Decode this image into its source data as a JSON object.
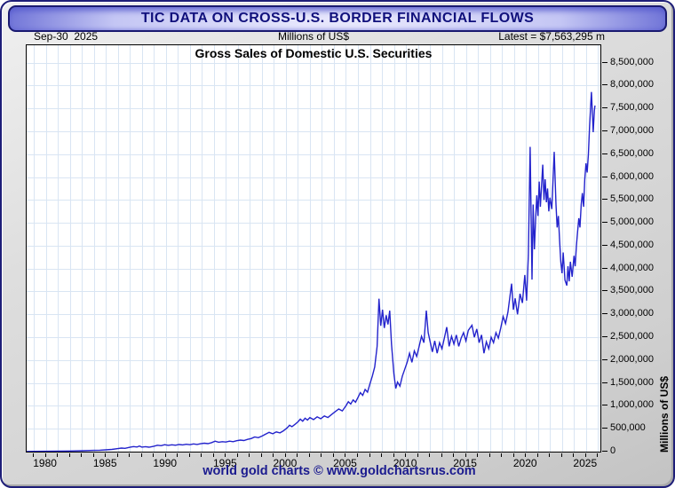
{
  "window": {
    "title": "TIC DATA ON CROSS-U.S. BORDER FINANCIAL FLOWS"
  },
  "header": {
    "date": "Sep-30  2025",
    "units": "Millions of US$",
    "latest": "Latest = $7,563,295 m"
  },
  "footer": {
    "credit": "world gold charts © www.goldchartsrus.com"
  },
  "colors": {
    "line": "#2323cc",
    "grid": "#d9e5f3",
    "plot_bg": "#ffffff",
    "frame": "#000000",
    "window_border": "#1e1e78",
    "titlebar_text": "#10107c",
    "footer_text": "#1b1b8f"
  },
  "chart_data": {
    "type": "line",
    "title": "Gross Sales of Domestic U.S. Securities",
    "xlabel": "",
    "ylabel": "Millions of US$",
    "xlim": [
      1978.4,
      2026.2
    ],
    "ylim": [
      0,
      8880000
    ],
    "ytick_interval": 500000,
    "ytick_max": 8500000,
    "xticks_labeled": [
      1980,
      1985,
      1990,
      1995,
      2000,
      2005,
      2010,
      2015,
      2020,
      2025
    ],
    "grid": true,
    "legend_position": "none",
    "latest_date": "Sep-30 2025",
    "latest_value": 7563295,
    "series": [
      {
        "name": "Gross Sales of Domestic U.S. Securities",
        "points": [
          [
            1978.4,
            3000
          ],
          [
            1979,
            5000
          ],
          [
            1980,
            8000
          ],
          [
            1981,
            11000
          ],
          [
            1982,
            14000
          ],
          [
            1983,
            20000
          ],
          [
            1984,
            27000
          ],
          [
            1984.5,
            31000
          ],
          [
            1985,
            38000
          ],
          [
            1985.5,
            48000
          ],
          [
            1986,
            65000
          ],
          [
            1986.3,
            78000
          ],
          [
            1986.6,
            72000
          ],
          [
            1987,
            95000
          ],
          [
            1987.3,
            110000
          ],
          [
            1987.6,
            100000
          ],
          [
            1987.8,
            122000
          ],
          [
            1988,
            98000
          ],
          [
            1988.3,
            108000
          ],
          [
            1988.6,
            96000
          ],
          [
            1989,
            118000
          ],
          [
            1989.3,
            140000
          ],
          [
            1989.6,
            130000
          ],
          [
            1989.9,
            152000
          ],
          [
            1990.2,
            138000
          ],
          [
            1990.5,
            150000
          ],
          [
            1990.8,
            140000
          ],
          [
            1991.1,
            155000
          ],
          [
            1991.4,
            147000
          ],
          [
            1991.7,
            160000
          ],
          [
            1992,
            152000
          ],
          [
            1992.3,
            168000
          ],
          [
            1992.6,
            158000
          ],
          [
            1992.9,
            172000
          ],
          [
            1993.2,
            185000
          ],
          [
            1993.5,
            175000
          ],
          [
            1993.8,
            195000
          ],
          [
            1994.1,
            228000
          ],
          [
            1994.4,
            205000
          ],
          [
            1994.7,
            218000
          ],
          [
            1995,
            210000
          ],
          [
            1995.3,
            228000
          ],
          [
            1995.6,
            218000
          ],
          [
            1995.9,
            238000
          ],
          [
            1996.2,
            252000
          ],
          [
            1996.5,
            242000
          ],
          [
            1996.8,
            268000
          ],
          [
            1997.1,
            285000
          ],
          [
            1997.4,
            320000
          ],
          [
            1997.7,
            305000
          ],
          [
            1998,
            340000
          ],
          [
            1998.3,
            380000
          ],
          [
            1998.6,
            420000
          ],
          [
            1998.9,
            390000
          ],
          [
            1999.2,
            430000
          ],
          [
            1999.5,
            410000
          ],
          [
            1999.8,
            455000
          ],
          [
            2000.1,
            520000
          ],
          [
            2000.3,
            575000
          ],
          [
            2000.5,
            545000
          ],
          [
            2000.8,
            605000
          ],
          [
            2001,
            650000
          ],
          [
            2001.2,
            710000
          ],
          [
            2001.4,
            665000
          ],
          [
            2001.6,
            730000
          ],
          [
            2001.8,
            690000
          ],
          [
            2002,
            745000
          ],
          [
            2002.3,
            700000
          ],
          [
            2002.6,
            760000
          ],
          [
            2002.9,
            720000
          ],
          [
            2003.2,
            780000
          ],
          [
            2003.5,
            745000
          ],
          [
            2003.8,
            810000
          ],
          [
            2004.1,
            870000
          ],
          [
            2004.4,
            930000
          ],
          [
            2004.7,
            890000
          ],
          [
            2005,
            1000000
          ],
          [
            2005.2,
            1090000
          ],
          [
            2005.4,
            1040000
          ],
          [
            2005.6,
            1130000
          ],
          [
            2005.8,
            1080000
          ],
          [
            2006,
            1180000
          ],
          [
            2006.2,
            1290000
          ],
          [
            2006.4,
            1230000
          ],
          [
            2006.6,
            1360000
          ],
          [
            2006.8,
            1300000
          ],
          [
            2007,
            1480000
          ],
          [
            2007.2,
            1650000
          ],
          [
            2007.4,
            1850000
          ],
          [
            2007.6,
            2300000
          ],
          [
            2007.75,
            3340000
          ],
          [
            2007.9,
            2750000
          ],
          [
            2008.05,
            3100000
          ],
          [
            2008.2,
            2700000
          ],
          [
            2008.35,
            2980000
          ],
          [
            2008.5,
            2780000
          ],
          [
            2008.65,
            3080000
          ],
          [
            2008.8,
            2350000
          ],
          [
            2009,
            1700000
          ],
          [
            2009.15,
            1380000
          ],
          [
            2009.3,
            1520000
          ],
          [
            2009.5,
            1430000
          ],
          [
            2009.7,
            1650000
          ],
          [
            2009.9,
            1800000
          ],
          [
            2010.1,
            1950000
          ],
          [
            2010.3,
            2150000
          ],
          [
            2010.5,
            1950000
          ],
          [
            2010.7,
            2200000
          ],
          [
            2010.9,
            2080000
          ],
          [
            2011.1,
            2300000
          ],
          [
            2011.3,
            2520000
          ],
          [
            2011.5,
            2380000
          ],
          [
            2011.7,
            3080000
          ],
          [
            2011.85,
            2600000
          ],
          [
            2012,
            2420000
          ],
          [
            2012.2,
            2180000
          ],
          [
            2012.4,
            2420000
          ],
          [
            2012.6,
            2150000
          ],
          [
            2012.8,
            2380000
          ],
          [
            2013,
            2250000
          ],
          [
            2013.2,
            2480000
          ],
          [
            2013.4,
            2720000
          ],
          [
            2013.6,
            2300000
          ],
          [
            2013.8,
            2520000
          ],
          [
            2014,
            2350000
          ],
          [
            2014.2,
            2550000
          ],
          [
            2014.4,
            2300000
          ],
          [
            2014.6,
            2480000
          ],
          [
            2014.8,
            2600000
          ],
          [
            2015,
            2420000
          ],
          [
            2015.2,
            2650000
          ],
          [
            2015.5,
            2760000
          ],
          [
            2015.7,
            2500000
          ],
          [
            2015.9,
            2680000
          ],
          [
            2016.1,
            2380000
          ],
          [
            2016.3,
            2550000
          ],
          [
            2016.5,
            2150000
          ],
          [
            2016.7,
            2400000
          ],
          [
            2016.9,
            2250000
          ],
          [
            2017.1,
            2500000
          ],
          [
            2017.3,
            2380000
          ],
          [
            2017.5,
            2600000
          ],
          [
            2017.7,
            2480000
          ],
          [
            2017.9,
            2700000
          ],
          [
            2018.1,
            2950000
          ],
          [
            2018.3,
            2800000
          ],
          [
            2018.5,
            3050000
          ],
          [
            2018.8,
            3670000
          ],
          [
            2018.95,
            3100000
          ],
          [
            2019.1,
            3350000
          ],
          [
            2019.3,
            3000000
          ],
          [
            2019.5,
            3450000
          ],
          [
            2019.7,
            3250000
          ],
          [
            2019.9,
            3860000
          ],
          [
            2020.05,
            3300000
          ],
          [
            2020.2,
            4300000
          ],
          [
            2020.35,
            6660000
          ],
          [
            2020.5,
            3760000
          ],
          [
            2020.6,
            5400000
          ],
          [
            2020.7,
            4420000
          ],
          [
            2020.8,
            5050000
          ],
          [
            2020.9,
            5600000
          ],
          [
            2021,
            5150000
          ],
          [
            2021.1,
            5900000
          ],
          [
            2021.2,
            5350000
          ],
          [
            2021.4,
            6270000
          ],
          [
            2021.5,
            5500000
          ],
          [
            2021.6,
            5950000
          ],
          [
            2021.7,
            5450000
          ],
          [
            2021.8,
            5750000
          ],
          [
            2021.9,
            5250000
          ],
          [
            2022,
            5550000
          ],
          [
            2022.15,
            5300000
          ],
          [
            2022.35,
            6550000
          ],
          [
            2022.5,
            5400000
          ],
          [
            2022.6,
            4900000
          ],
          [
            2022.7,
            5150000
          ],
          [
            2022.8,
            4600000
          ],
          [
            2022.9,
            4150000
          ],
          [
            2023,
            3900000
          ],
          [
            2023.1,
            4350000
          ],
          [
            2023.25,
            3750000
          ],
          [
            2023.4,
            3630000
          ],
          [
            2023.5,
            4050000
          ],
          [
            2023.6,
            3720000
          ],
          [
            2023.7,
            4150000
          ],
          [
            2023.85,
            3820000
          ],
          [
            2024,
            4280000
          ],
          [
            2024.1,
            4050000
          ],
          [
            2024.2,
            4500000
          ],
          [
            2024.3,
            4800000
          ],
          [
            2024.4,
            5100000
          ],
          [
            2024.5,
            4900000
          ],
          [
            2024.6,
            5400000
          ],
          [
            2024.7,
            5650000
          ],
          [
            2024.8,
            5350000
          ],
          [
            2024.9,
            5950000
          ],
          [
            2025,
            6300000
          ],
          [
            2025.1,
            6100000
          ],
          [
            2025.2,
            6500000
          ],
          [
            2025.3,
            7100000
          ],
          [
            2025.45,
            7860000
          ],
          [
            2025.55,
            7300000
          ],
          [
            2025.6,
            6980000
          ],
          [
            2025.7,
            7450000
          ],
          [
            2025.75,
            7563295
          ]
        ]
      }
    ]
  }
}
